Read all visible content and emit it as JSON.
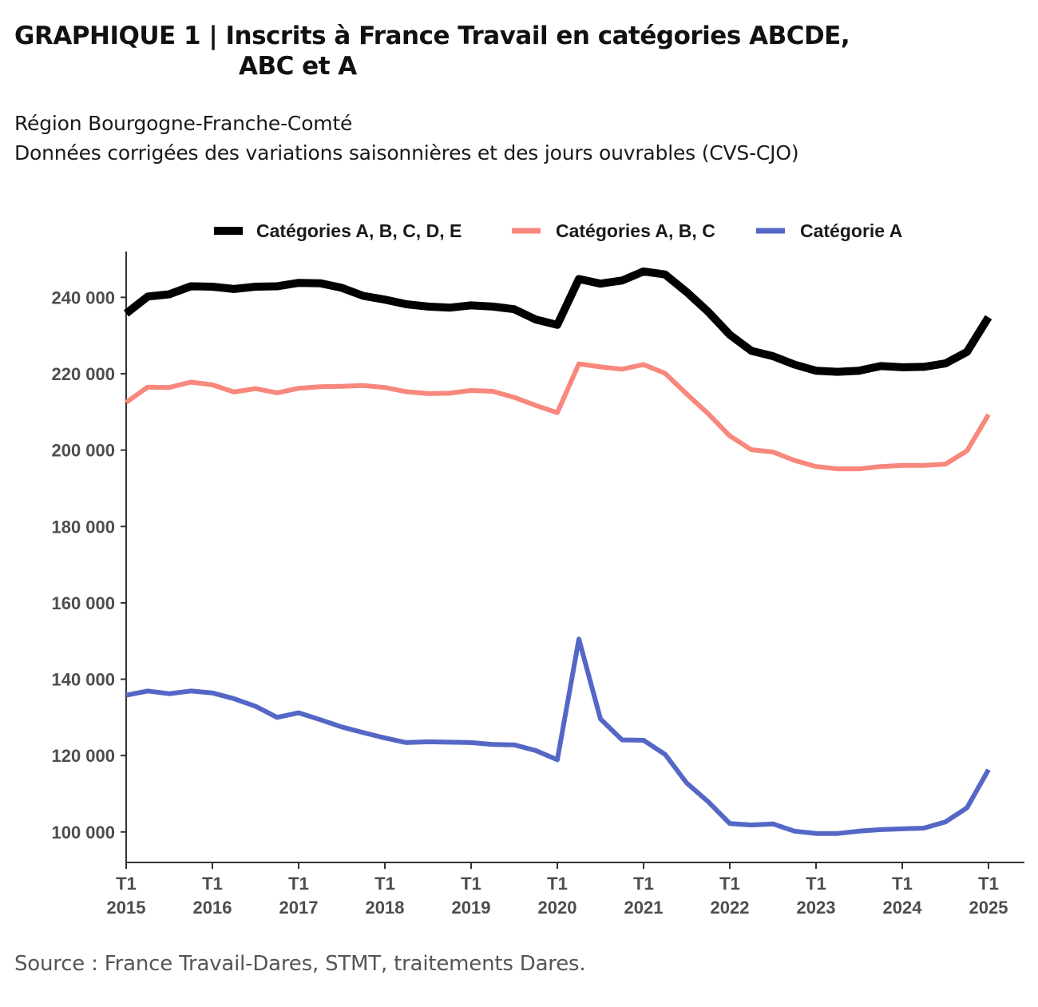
{
  "header": {
    "title_line1": "GRAPHIQUE 1 | Inscrits à France Travail en catégories ABCDE,",
    "title_line2": "ABC et A",
    "subtitle_line1": "Région Bourgogne-Franche-Comté",
    "subtitle_line2": "Données corrigées des variations saisonnières et des jours ouvrables (CVS-CJO)"
  },
  "footer": {
    "source": "Source : France Travail-Dares, STMT, traitements Dares."
  },
  "chart_data": {
    "type": "line",
    "title": "GRAPHIQUE 1 | Inscrits à France Travail en catégories ABCDE, ABC et A",
    "xlabel": "",
    "ylabel": "",
    "x_unit": "quarter index from T1 2015",
    "xlim": [
      0,
      40
    ],
    "ylim": [
      92000,
      252000
    ],
    "grid": false,
    "legend_position": "top",
    "x_ticks": [
      {
        "x": 0,
        "line1": "T1",
        "line2": "2015"
      },
      {
        "x": 4,
        "line1": "T1",
        "line2": "2016"
      },
      {
        "x": 8,
        "line1": "T1",
        "line2": "2017"
      },
      {
        "x": 12,
        "line1": "T1",
        "line2": "2018"
      },
      {
        "x": 16,
        "line1": "T1",
        "line2": "2019"
      },
      {
        "x": 20,
        "line1": "T1",
        "line2": "2020"
      },
      {
        "x": 24,
        "line1": "T1",
        "line2": "2021"
      },
      {
        "x": 28,
        "line1": "T1",
        "line2": "2022"
      },
      {
        "x": 32,
        "line1": "T1",
        "line2": "2023"
      },
      {
        "x": 36,
        "line1": "T1",
        "line2": "2024"
      },
      {
        "x": 40,
        "line1": "T1",
        "line2": "2025"
      }
    ],
    "y_ticks": [
      {
        "value": 100000,
        "label": "100 000"
      },
      {
        "value": 120000,
        "label": "120 000"
      },
      {
        "value": 140000,
        "label": "140 000"
      },
      {
        "value": 160000,
        "label": "160 000"
      },
      {
        "value": 180000,
        "label": "180 000"
      },
      {
        "value": 200000,
        "label": "200 000"
      },
      {
        "value": 220000,
        "label": "220 000"
      },
      {
        "value": 240000,
        "label": "240 000"
      }
    ],
    "series": [
      {
        "name": "Catégories A, B, C, D, E",
        "color": "#000000",
        "values": [
          235800,
          240200,
          240800,
          242900,
          242800,
          242200,
          242800,
          242900,
          243800,
          243700,
          242500,
          240400,
          239400,
          238200,
          237600,
          237300,
          237900,
          237600,
          236900,
          234200,
          232800,
          244800,
          243600,
          244400,
          246800,
          246000,
          241400,
          236200,
          230200,
          226000,
          224600,
          222400,
          220800,
          220500,
          220800,
          222000,
          221700,
          221800,
          222700,
          225700,
          234800
        ]
      },
      {
        "name": "Catégories A, B, C",
        "color": "#f8877c",
        "values": [
          212500,
          216500,
          216400,
          217800,
          217100,
          215200,
          216100,
          215000,
          216200,
          216600,
          216700,
          216900,
          216400,
          215300,
          214800,
          214900,
          215600,
          215400,
          213800,
          211700,
          209800,
          222600,
          221800,
          221200,
          222400,
          220100,
          214700,
          209500,
          203700,
          200100,
          199500,
          197300,
          195700,
          195100,
          195100,
          195700,
          196000,
          196000,
          196300,
          199800,
          209300
        ]
      },
      {
        "name": "Catégorie A",
        "color": "#5567c6",
        "values": [
          135800,
          136900,
          136200,
          136900,
          136400,
          134900,
          132900,
          130000,
          131200,
          129400,
          127500,
          126000,
          124600,
          123400,
          123600,
          123500,
          123400,
          122900,
          122800,
          121300,
          118900,
          150500,
          129600,
          124100,
          124000,
          120300,
          112800,
          107900,
          102200,
          101800,
          102100,
          100200,
          99600,
          99600,
          100200,
          100600,
          100800,
          101000,
          102600,
          106300,
          116300
        ]
      }
    ]
  }
}
